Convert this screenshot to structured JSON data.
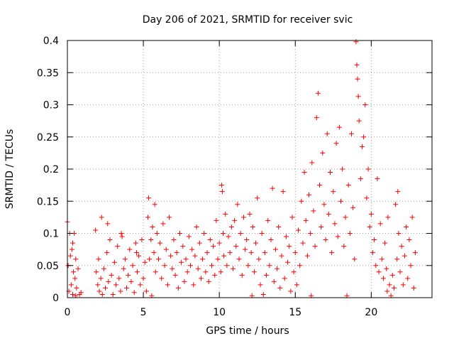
{
  "chart_data": {
    "type": "scatter",
    "title": "Day 206 of 2021, SRMTID for receiver svic",
    "xlabel": "GPS time / hours",
    "ylabel": "SRMTID / TECUs",
    "xlim": [
      0,
      24
    ],
    "ylim": [
      0,
      0.4
    ],
    "x_ticks": [
      0,
      5,
      10,
      15,
      20
    ],
    "y_ticks": [
      0,
      0.05,
      0.1,
      0.15,
      0.2,
      0.25,
      0.3,
      0.35,
      0.4
    ],
    "x_tick_labels": [
      "0",
      "5",
      "10",
      "15",
      "20"
    ],
    "y_tick_labels": [
      "0",
      "0.05",
      "0.1",
      "0.15",
      "0.2",
      "0.25",
      "0.3",
      "0.35",
      "0.4"
    ],
    "grid": true,
    "marker": "+",
    "color": "#ff0000",
    "series": [
      {
        "name": "SRMTID",
        "points": [
          [
            0.0,
            0.118
          ],
          [
            0.05,
            0.05
          ],
          [
            0.1,
            0.01
          ],
          [
            0.15,
            0.1
          ],
          [
            0.2,
            0.065
          ],
          [
            0.25,
            0.02
          ],
          [
            0.3,
            0.075
          ],
          [
            0.35,
            0.005
          ],
          [
            0.4,
            0.04
          ],
          [
            0.45,
            0.1
          ],
          [
            0.5,
            0.03
          ],
          [
            0.55,
            0.06
          ],
          [
            0.6,
            0.015
          ],
          [
            0.7,
            0.045
          ],
          [
            0.8,
            0.005
          ],
          [
            0.9,
            0.008
          ],
          [
            0.35,
            0.085
          ],
          [
            0.55,
            0.003
          ],
          [
            1.85,
            0.105
          ],
          [
            1.9,
            0.04
          ],
          [
            2.0,
            0.02
          ],
          [
            2.05,
            0.06
          ],
          [
            2.1,
            0.01
          ],
          [
            2.2,
            0.03
          ],
          [
            2.25,
            0.125
          ],
          [
            2.3,
            0.005
          ],
          [
            2.4,
            0.045
          ],
          [
            2.5,
            0.015
          ],
          [
            2.6,
            0.07
          ],
          [
            2.7,
            0.025
          ],
          [
            2.8,
            0.09
          ],
          [
            2.9,
            0.035
          ],
          [
            3.0,
            0.005
          ],
          [
            3.1,
            0.055
          ],
          [
            3.2,
            0.02
          ],
          [
            3.3,
            0.08
          ],
          [
            3.4,
            0.03
          ],
          [
            3.5,
            0.01
          ],
          [
            3.6,
            0.095
          ],
          [
            3.7,
            0.045
          ],
          [
            3.8,
            0.06
          ],
          [
            3.9,
            0.015
          ],
          [
            4.0,
            0.035
          ],
          [
            4.1,
            0.075
          ],
          [
            4.2,
            0.025
          ],
          [
            4.3,
            0.05
          ],
          [
            4.4,
            0.008
          ],
          [
            4.5,
            0.085
          ],
          [
            4.6,
            0.04
          ],
          [
            4.7,
            0.065
          ],
          [
            4.8,
            0.02
          ],
          [
            4.9,
            0.09
          ],
          [
            5.0,
            0.03
          ],
          [
            5.1,
            0.055
          ],
          [
            5.2,
            0.01
          ],
          [
            2.65,
            0.115
          ],
          [
            3.55,
            0.1
          ],
          [
            4.55,
            0.07
          ],
          [
            5.3,
            0.125
          ],
          [
            5.35,
            0.155
          ],
          [
            5.4,
            0.06
          ],
          [
            5.5,
            0.09
          ],
          [
            5.55,
            0.003
          ],
          [
            5.6,
            0.11
          ],
          [
            5.7,
            0.07
          ],
          [
            5.75,
            0.145
          ],
          [
            5.8,
            0.04
          ],
          [
            5.9,
            0.1
          ],
          [
            6.0,
            0.06
          ],
          [
            6.1,
            0.085
          ],
          [
            6.2,
            0.03
          ],
          [
            6.3,
            0.115
          ],
          [
            6.4,
            0.05
          ],
          [
            6.5,
            0.075
          ],
          [
            6.6,
            0.02
          ],
          [
            6.7,
            0.125
          ],
          [
            6.8,
            0.065
          ],
          [
            6.9,
            0.045
          ],
          [
            7.0,
            0.09
          ],
          [
            7.1,
            0.035
          ],
          [
            7.2,
            0.07
          ],
          [
            7.3,
            0.015
          ],
          [
            7.4,
            0.1
          ],
          [
            7.5,
            0.055
          ],
          [
            7.6,
            0.08
          ],
          [
            7.7,
            0.025
          ],
          [
            7.8,
            0.06
          ],
          [
            7.9,
            0.04
          ],
          [
            8.0,
            0.095
          ],
          [
            8.1,
            0.05
          ],
          [
            8.2,
            0.075
          ],
          [
            8.3,
            0.02
          ],
          [
            8.4,
            0.065
          ],
          [
            8.5,
            0.11
          ],
          [
            8.6,
            0.045
          ],
          [
            8.7,
            0.085
          ],
          [
            8.8,
            0.03
          ],
          [
            8.9,
            0.06
          ],
          [
            9.0,
            0.1
          ],
          [
            9.1,
            0.04
          ],
          [
            9.2,
            0.07
          ],
          [
            9.3,
            0.025
          ],
          [
            9.4,
            0.09
          ],
          [
            9.5,
            0.05
          ],
          [
            9.6,
            0.08
          ],
          [
            9.7,
            0.035
          ],
          [
            9.8,
            0.12
          ],
          [
            9.9,
            0.06
          ],
          [
            10.0,
            0.085
          ],
          [
            10.1,
            0.04
          ],
          [
            10.15,
            0.175
          ],
          [
            10.2,
            0.165
          ],
          [
            10.25,
            0.1
          ],
          [
            10.3,
            0.065
          ],
          [
            10.4,
            0.13
          ],
          [
            10.5,
            0.05
          ],
          [
            10.6,
            0.095
          ],
          [
            10.7,
            0.07
          ],
          [
            10.8,
            0.11
          ],
          [
            10.9,
            0.045
          ],
          [
            11.0,
            0.12
          ],
          [
            11.1,
            0.08
          ],
          [
            11.2,
            0.145
          ],
          [
            11.3,
            0.06
          ],
          [
            11.4,
            0.1
          ],
          [
            11.5,
            0.035
          ],
          [
            11.6,
            0.125
          ],
          [
            11.7,
            0.075
          ],
          [
            11.8,
            0.09
          ],
          [
            11.9,
            0.05
          ],
          [
            12.0,
            0.13
          ],
          [
            12.1,
            0.07
          ],
          [
            12.15,
            0.003
          ],
          [
            12.2,
            0.11
          ],
          [
            12.3,
            0.04
          ],
          [
            12.4,
            0.085
          ],
          [
            12.5,
            0.155
          ],
          [
            12.6,
            0.06
          ],
          [
            12.7,
            0.02
          ],
          [
            12.8,
            0.1
          ],
          [
            12.9,
            0.005
          ],
          [
            13.0,
            0.07
          ],
          [
            13.1,
            0.035
          ],
          [
            13.2,
            0.12
          ],
          [
            13.3,
            0.05
          ],
          [
            13.4,
            0.09
          ],
          [
            13.5,
            0.17
          ],
          [
            13.6,
            0.025
          ],
          [
            13.7,
            0.075
          ],
          [
            13.8,
            0.045
          ],
          [
            13.9,
            0.11
          ],
          [
            14.0,
            0.015
          ],
          [
            14.1,
            0.065
          ],
          [
            14.2,
            0.165
          ],
          [
            14.3,
            0.03
          ],
          [
            14.4,
            0.095
          ],
          [
            14.5,
            0.055
          ],
          [
            14.6,
            0.08
          ],
          [
            14.7,
            0.01
          ],
          [
            14.8,
            0.125
          ],
          [
            14.9,
            0.04
          ],
          [
            15.0,
            0.07
          ],
          [
            15.1,
            0.02
          ],
          [
            15.2,
            0.105
          ],
          [
            15.3,
            0.05
          ],
          [
            15.4,
            0.15
          ],
          [
            15.5,
            0.085
          ],
          [
            15.6,
            0.195
          ],
          [
            15.7,
            0.12
          ],
          [
            15.8,
            0.065
          ],
          [
            15.9,
            0.16
          ],
          [
            16.0,
            0.1
          ],
          [
            16.05,
            0.003
          ],
          [
            16.1,
            0.21
          ],
          [
            16.2,
            0.135
          ],
          [
            16.3,
            0.08
          ],
          [
            16.4,
            0.28
          ],
          [
            16.5,
            0.318
          ],
          [
            16.6,
            0.175
          ],
          [
            16.7,
            0.11
          ],
          [
            16.8,
            0.225
          ],
          [
            16.9,
            0.145
          ],
          [
            17.0,
            0.09
          ],
          [
            17.1,
            0.255
          ],
          [
            17.2,
            0.13
          ],
          [
            17.3,
            0.195
          ],
          [
            17.4,
            0.07
          ],
          [
            17.5,
            0.165
          ],
          [
            17.6,
            0.115
          ],
          [
            17.7,
            0.24
          ],
          [
            17.8,
            0.095
          ],
          [
            17.9,
            0.265
          ],
          [
            18.0,
            0.15
          ],
          [
            18.1,
            0.2
          ],
          [
            18.2,
            0.08
          ],
          [
            18.3,
            0.125
          ],
          [
            18.4,
            0.003
          ],
          [
            18.5,
            0.175
          ],
          [
            18.6,
            0.1
          ],
          [
            18.7,
            0.255
          ],
          [
            18.8,
            0.14
          ],
          [
            18.9,
            0.06
          ],
          [
            19.0,
            0.398
          ],
          [
            19.05,
            0.362
          ],
          [
            19.1,
            0.34
          ],
          [
            19.15,
            0.313
          ],
          [
            19.2,
            0.275
          ],
          [
            19.3,
            0.185
          ],
          [
            19.4,
            0.235
          ],
          [
            19.5,
            0.25
          ],
          [
            19.6,
            0.3
          ],
          [
            19.7,
            0.155
          ],
          [
            19.8,
            0.2
          ],
          [
            19.9,
            0.11
          ],
          [
            20.0,
            0.13
          ],
          [
            20.1,
            0.07
          ],
          [
            20.2,
            0.09
          ],
          [
            20.3,
            0.05
          ],
          [
            20.4,
            0.185
          ],
          [
            20.5,
            0.04
          ],
          [
            20.6,
            0.115
          ],
          [
            20.7,
            0.06
          ],
          [
            20.8,
            0.03
          ],
          [
            20.9,
            0.085
          ],
          [
            21.0,
            0.045
          ],
          [
            21.05,
            0.01
          ],
          [
            21.1,
            0.125
          ],
          [
            21.2,
            0.02
          ],
          [
            21.3,
            0.003
          ],
          [
            21.4,
            0.035
          ],
          [
            21.5,
            0.015
          ],
          [
            21.6,
            0.145
          ],
          [
            21.7,
            0.06
          ],
          [
            21.75,
            0.165
          ],
          [
            21.8,
            0.1
          ],
          [
            21.9,
            0.04
          ],
          [
            22.0,
            0.08
          ],
          [
            22.1,
            0.02
          ],
          [
            22.2,
            0.065
          ],
          [
            22.3,
            0.11
          ],
          [
            22.4,
            0.03
          ],
          [
            22.5,
            0.09
          ],
          [
            22.6,
            0.05
          ],
          [
            22.7,
            0.125
          ],
          [
            22.8,
            0.015
          ],
          [
            22.9,
            0.07
          ]
        ]
      }
    ]
  }
}
